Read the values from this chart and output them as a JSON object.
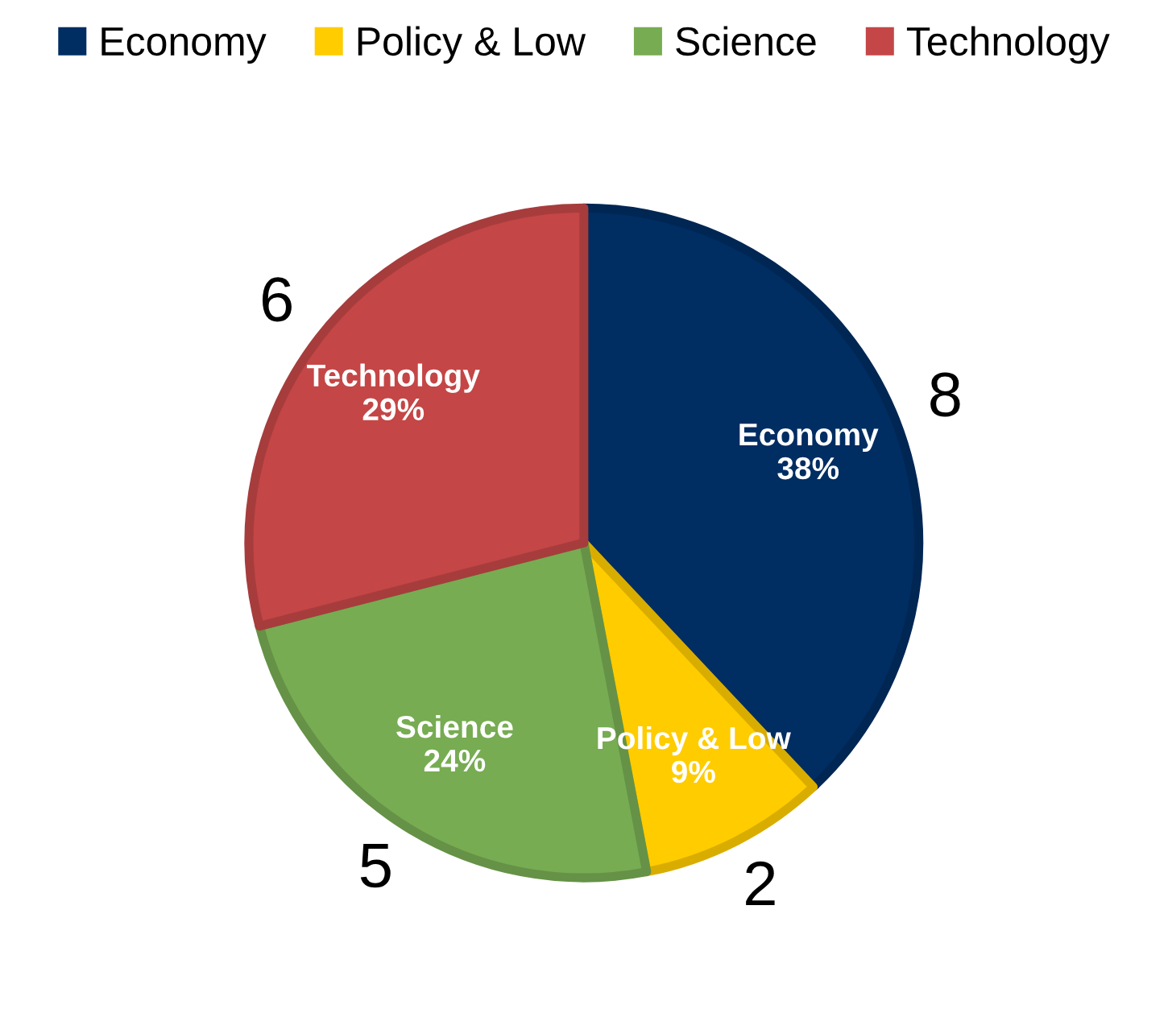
{
  "chart_data": {
    "type": "pie",
    "categories": [
      "Economy",
      "Policy & Low",
      "Science",
      "Technology"
    ],
    "values": [
      38,
      9,
      24,
      29
    ],
    "colors": [
      "#002d62",
      "#ffcc00",
      "#77ac52",
      "#c44646"
    ],
    "value_labels": [
      "38%",
      "9%",
      "24%",
      "29%"
    ],
    "annotations": [
      {
        "text": "8",
        "x": "Economy"
      },
      {
        "text": "2",
        "x": "Policy & Low"
      },
      {
        "text": "5",
        "x": "Science"
      },
      {
        "text": "6",
        "x": "Technology"
      }
    ],
    "legend": "top"
  }
}
